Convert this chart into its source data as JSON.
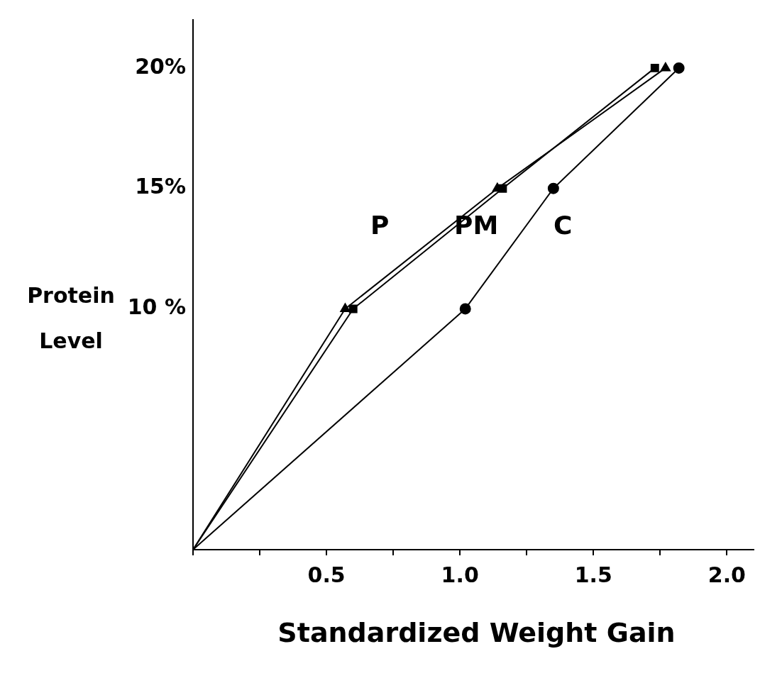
{
  "chart_data": {
    "type": "line",
    "xlabel": "Standardized Weight Gain",
    "ylabel": "Protein Level",
    "xlim": [
      0,
      2.1
    ],
    "xticks": [
      {
        "value": 0,
        "label": null
      },
      {
        "value": 0.25,
        "label": null
      },
      {
        "value": 0.5,
        "label": "0.5"
      },
      {
        "value": 0.75,
        "label": null
      },
      {
        "value": 1,
        "label": "1.0"
      },
      {
        "value": 1.25,
        "label": null
      },
      {
        "value": 1.5,
        "label": "1.5"
      },
      {
        "value": 1.75,
        "label": null
      },
      {
        "value": 2,
        "label": "2.0"
      }
    ],
    "ylim": [
      0,
      22
    ],
    "yticks": [
      {
        "value": 10,
        "label": "10 %"
      },
      {
        "value": 15,
        "label": "15%"
      },
      {
        "value": 20,
        "label": "20%"
      }
    ],
    "series": [
      {
        "color": "#000000",
        "marker": "square",
        "x": [
          0,
          0.6,
          1.16,
          1.73
        ],
        "values": [
          0,
          10,
          15,
          20
        ]
      },
      {
        "color": "#000000",
        "marker": "triangle",
        "x": [
          0,
          0.57,
          1.14,
          1.77
        ],
        "values": [
          0,
          10,
          15,
          20
        ]
      },
      {
        "color": "#000000",
        "marker": "circle",
        "x": [
          0,
          1.02,
          1.35,
          1.82
        ],
        "values": [
          0,
          10,
          15,
          20
        ]
      }
    ],
    "annotations": [
      "P",
      "PM",
      "C"
    ],
    "grid": false,
    "legend": false
  }
}
